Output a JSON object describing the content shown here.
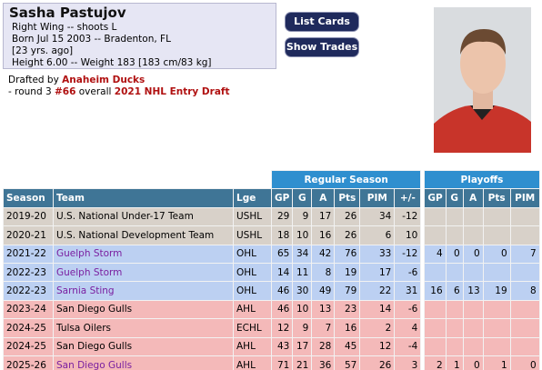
{
  "header": {
    "name": "Sasha Pastujov",
    "position": "Right Wing -- shoots L",
    "born": "Born Jul 15 2003 -- Bradenton, FL",
    "age": "[23 yrs. ago]",
    "size": "Height 6.00 -- Weight 183 [183 cm/83 kg]"
  },
  "draft": {
    "prefix": "Drafted by",
    "team": "Anaheim Ducks",
    "round": "- round 3",
    "pick": "#66",
    "overall": "overall",
    "event": "2021 NHL Entry Draft"
  },
  "buttons": [
    "List Cards",
    "Show Trades"
  ],
  "table": {
    "groups": [
      "Regular Season",
      "Playoffs"
    ],
    "columns": [
      "Season",
      "Team",
      "Lge",
      "GP",
      "G",
      "A",
      "Pts",
      "PIM",
      "+/-",
      "GP",
      "G",
      "A",
      "Pts",
      "PIM"
    ],
    "row_colors": {
      "USHL": "#d8d1c9",
      "OHL": "#bcd0f2",
      "AHL": "#f4b9b9",
      "ECHL": "#f4b9b9"
    },
    "visited_color": "#7a1fa0",
    "rows": [
      {
        "season": "2019-20",
        "team": "U.S. National Under-17 Team",
        "league": "USHL",
        "regular": [
          29,
          9,
          17,
          26,
          34,
          -12
        ]
      },
      {
        "season": "2020-21",
        "team": "U.S. National Development Team",
        "league": "USHL",
        "regular": [
          18,
          10,
          16,
          26,
          6,
          10
        ]
      },
      {
        "season": "2021-22",
        "team": "Guelph Storm",
        "league": "OHL",
        "visited": true,
        "regular": [
          65,
          34,
          42,
          76,
          33,
          -12
        ],
        "playoffs": [
          4,
          0,
          0,
          0,
          7
        ]
      },
      {
        "season": "2022-23",
        "team": "Guelph Storm",
        "league": "OHL",
        "visited": true,
        "regular": [
          14,
          11,
          8,
          19,
          17,
          -6
        ]
      },
      {
        "season": "2022-23",
        "team": "Sarnia Sting",
        "league": "OHL",
        "visited": true,
        "regular": [
          46,
          30,
          49,
          79,
          22,
          31
        ],
        "playoffs": [
          16,
          6,
          13,
          19,
          8
        ]
      },
      {
        "season": "2023-24",
        "team": "San Diego Gulls",
        "league": "AHL",
        "regular": [
          46,
          10,
          13,
          23,
          14,
          -6
        ]
      },
      {
        "season": "2024-25",
        "team": "Tulsa Oilers",
        "league": "ECHL",
        "regular": [
          12,
          9,
          7,
          16,
          2,
          4
        ]
      },
      {
        "season": "2024-25",
        "team": "San Diego Gulls",
        "league": "AHL",
        "regular": [
          43,
          17,
          28,
          45,
          12,
          -4
        ]
      },
      {
        "season": "2025-26",
        "team": "San Diego Gulls",
        "league": "AHL",
        "visited": true,
        "regular": [
          71,
          21,
          36,
          57,
          26,
          3
        ],
        "playoffs": [
          2,
          1,
          0,
          1,
          0
        ]
      }
    ]
  }
}
